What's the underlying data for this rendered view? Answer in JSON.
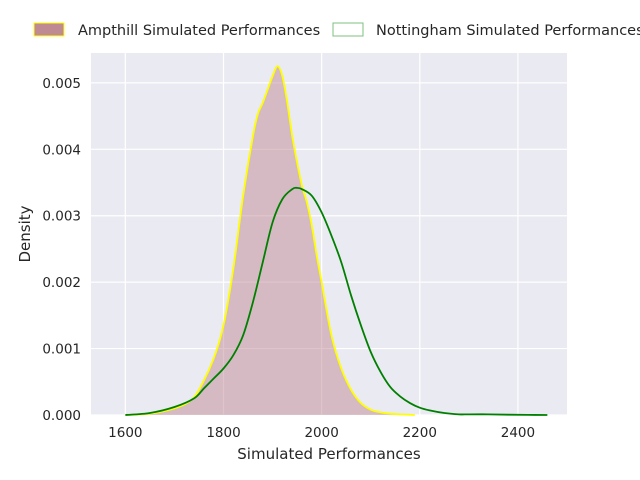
{
  "colors": {
    "background": "#eaeaf2",
    "grid": "#ffffff",
    "ampthill_fill": "#c08a93",
    "ampthill_line": "#ffff00",
    "nottingham_line": "#008000",
    "nottingham_legend_edge": "#7fc07f"
  },
  "chart_data": {
    "type": "kde",
    "xlabel": "Simulated Performances",
    "ylabel": "Density",
    "xlim": [
      1530,
      2500
    ],
    "ylim": [
      0,
      0.00545
    ],
    "xticks": [
      1600,
      1800,
      2000,
      2200,
      2400
    ],
    "yticks": [
      0,
      0.001,
      0.002,
      0.003,
      0.004,
      0.005
    ],
    "xtick_labels": [
      "1600",
      "1800",
      "2000",
      "2200",
      "2400"
    ],
    "ytick_labels": [
      "0.000",
      "0.001",
      "0.002",
      "0.003",
      "0.004",
      "0.005"
    ],
    "grid": true,
    "legend_position": "top, above plot",
    "series": [
      {
        "name": "Ampthill Simulated Performances",
        "style": "filled",
        "x": [
          1600,
          1650,
          1700,
          1730,
          1750,
          1780,
          1800,
          1820,
          1840,
          1860,
          1870,
          1880,
          1890,
          1900,
          1910,
          1920,
          1930,
          1940,
          1950,
          1960,
          1970,
          1980,
          1990,
          2000,
          2020,
          2040,
          2060,
          2080,
          2100,
          2120,
          2140,
          2160,
          2190
        ],
        "y": [
          0.0,
          2e-05,
          0.0001,
          0.0002,
          0.00038,
          0.00085,
          0.00135,
          0.0022,
          0.0033,
          0.0042,
          0.00453,
          0.0047,
          0.0049,
          0.0051,
          0.00525,
          0.0051,
          0.0047,
          0.0042,
          0.0038,
          0.00345,
          0.0032,
          0.00285,
          0.0024,
          0.002,
          0.0012,
          0.0007,
          0.00038,
          0.00018,
          8e-05,
          4e-05,
          2e-05,
          1e-05,
          0.0
        ]
      },
      {
        "name": "Nottingham Simulated Performances",
        "style": "line",
        "x": [
          1600,
          1650,
          1700,
          1740,
          1760,
          1780,
          1800,
          1820,
          1840,
          1860,
          1880,
          1900,
          1920,
          1940,
          1950,
          1960,
          1980,
          2000,
          2020,
          2040,
          2060,
          2080,
          2100,
          2120,
          2140,
          2160,
          2180,
          2200,
          2220,
          2250,
          2280,
          2300,
          2340,
          2380,
          2420,
          2460
        ],
        "y": [
          0.0,
          3e-05,
          0.00012,
          0.00025,
          0.0004,
          0.00055,
          0.0007,
          0.0009,
          0.0012,
          0.0017,
          0.0023,
          0.0029,
          0.00325,
          0.0034,
          0.00342,
          0.0034,
          0.0033,
          0.00305,
          0.0027,
          0.0023,
          0.0018,
          0.00135,
          0.00095,
          0.00065,
          0.00042,
          0.00028,
          0.00018,
          0.00011,
          7e-05,
          3e-05,
          1e-05,
          1e-05,
          1e-05,
          5e-06,
          2e-06,
          0.0
        ]
      }
    ]
  }
}
